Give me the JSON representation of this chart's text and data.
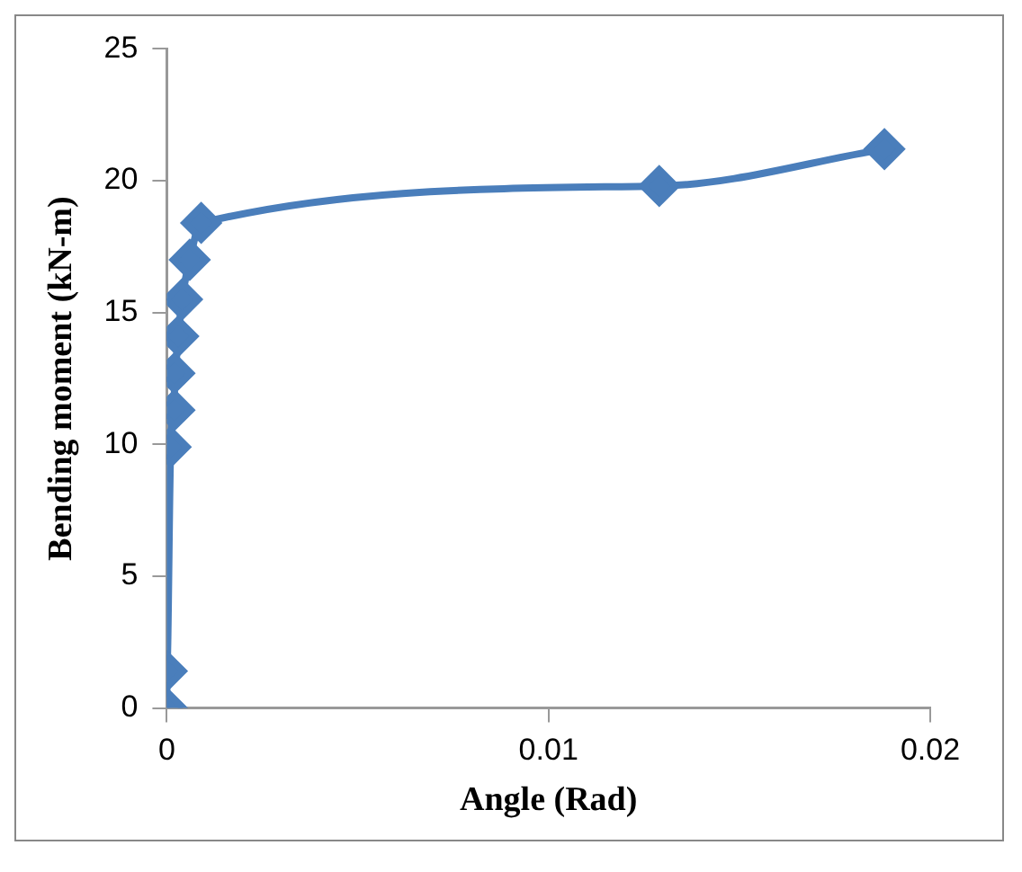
{
  "chart_data": {
    "type": "line",
    "xlabel": "Angle (Rad)",
    "ylabel": "Bending moment (kN-m)",
    "x": [
      0,
      0,
      0.0001,
      0.0002,
      0.0002,
      0.0003,
      0.0004,
      0.0006,
      0.0009,
      0.0129,
      0.0188
    ],
    "values": [
      0,
      1.4,
      9.9,
      11.3,
      12.7,
      14.1,
      15.5,
      17.0,
      18.4,
      19.8,
      21.2
    ],
    "color": "#4a7ebb",
    "marker": "diamond",
    "line_style": "solid",
    "grid": false,
    "legend": false,
    "xlim": [
      0,
      0.02
    ],
    "xticks": [
      0,
      0.01,
      0.02
    ],
    "ylim": [
      0,
      25
    ],
    "yticks": [
      0,
      5,
      10,
      15,
      20,
      25
    ]
  }
}
